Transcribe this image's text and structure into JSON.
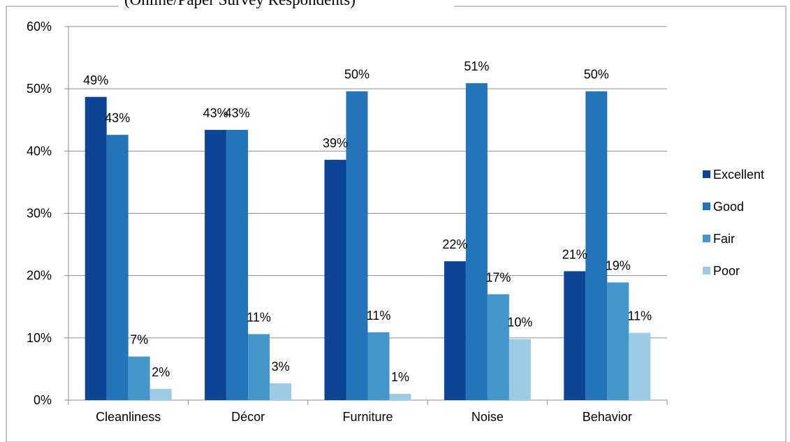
{
  "chart_data": {
    "type": "bar",
    "subtitle": "(Online/Paper Survey Respondents)",
    "categories": [
      "Cleanliness",
      "Décor",
      "Furniture",
      "Noise",
      "Behavior"
    ],
    "series": [
      {
        "name": "Excellent",
        "color": "#0b4594",
        "values": [
          48.7,
          43.4,
          38.6,
          22.3,
          20.7
        ],
        "labels": [
          "49%",
          "43%",
          "39%",
          "22%",
          "21%"
        ]
      },
      {
        "name": "Good",
        "color": "#2374b9",
        "values": [
          42.6,
          43.4,
          49.6,
          50.9,
          49.6
        ],
        "labels": [
          "43%",
          "43%",
          "50%",
          "51%",
          "50%"
        ]
      },
      {
        "name": "Fair",
        "color": "#4596ca",
        "values": [
          7.0,
          10.6,
          10.9,
          17.0,
          18.9
        ],
        "labels": [
          "7%",
          "11%",
          "11%",
          "17%",
          "19%"
        ]
      },
      {
        "name": "Poor",
        "color": "#9ccbe5",
        "values": [
          1.8,
          2.7,
          1.0,
          9.8,
          10.8
        ],
        "labels": [
          "2%",
          "3%",
          "1%",
          "10%",
          "11%"
        ]
      }
    ],
    "ylim": [
      0,
      60
    ],
    "yticks": [
      "0%",
      "10%",
      "20%",
      "30%",
      "40%",
      "50%",
      "60%"
    ],
    "grid": true,
    "legend": "right"
  }
}
